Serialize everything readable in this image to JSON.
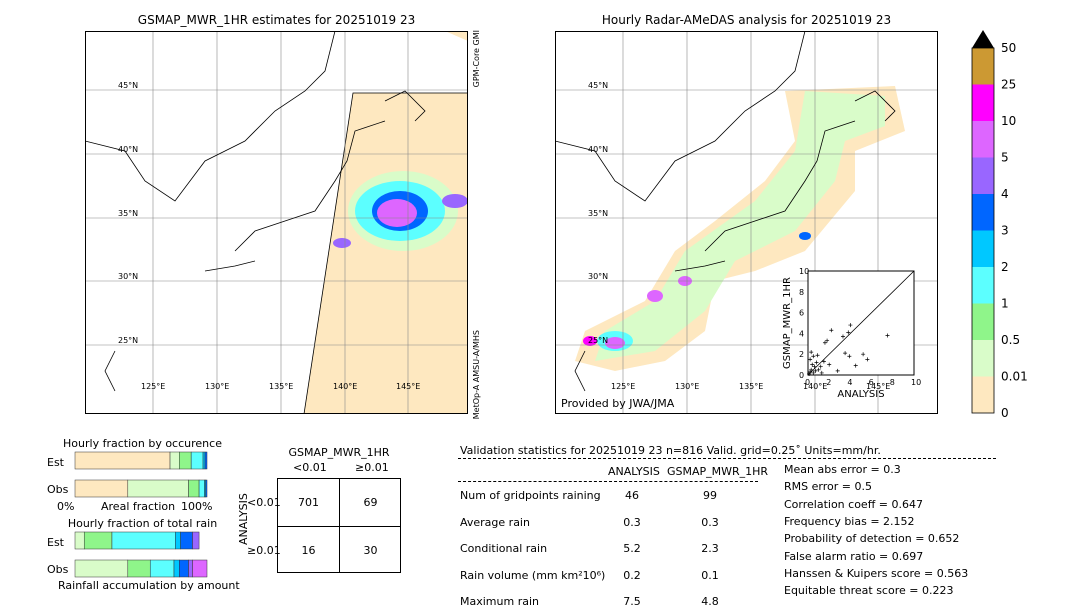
{
  "left_map": {
    "title": "GSMAP_MWR_1HR estimates for 20251019 23",
    "sensor_top": "GPM-Core GMI",
    "sensor_bottom": "MetOp-A AMSU-A/MHS"
  },
  "right_map": {
    "title": "Hourly Radar-AMeDAS analysis for 20251019 23",
    "credit": "Provided by JWA/JMA"
  },
  "lat_labels": [
    "45°N",
    "40°N",
    "35°N",
    "30°N",
    "25°N"
  ],
  "lon_labels": [
    "125°E",
    "130°E",
    "135°E",
    "140°E",
    "145°E"
  ],
  "colorbar": {
    "ticks": [
      "0",
      "0.01",
      "0.5",
      "1",
      "2",
      "3",
      "4",
      "5",
      "10",
      "25",
      "50"
    ],
    "colors": [
      "#fee8c0",
      "#d9fcc9",
      "#8ff58a",
      "#5cffff",
      "#00c8ff",
      "#0066ff",
      "#9966ff",
      "#dd66ff",
      "#ff00ff",
      "#cc9933"
    ],
    "extend_color": "#000000"
  },
  "chart_data": [
    {
      "type": "scatter",
      "xlabel": "ANALYSIS",
      "ylabel": "GSMAP_MWR_1HR",
      "xlim": [
        0,
        10
      ],
      "ylim": [
        0,
        10
      ],
      "ticks": [
        "0",
        "2",
        "4",
        "6",
        "8",
        "10"
      ],
      "points": [
        [
          0.2,
          0.3
        ],
        [
          0.3,
          0.5
        ],
        [
          0.5,
          0.2
        ],
        [
          0.4,
          1.0
        ],
        [
          0.6,
          0.8
        ],
        [
          0.8,
          1.2
        ],
        [
          1.0,
          0.5
        ],
        [
          0.2,
          1.5
        ],
        [
          0.5,
          1.8
        ],
        [
          0.9,
          1.9
        ],
        [
          1.2,
          0.8
        ],
        [
          1.5,
          1.3
        ],
        [
          1.6,
          3.1
        ],
        [
          1.8,
          3.3
        ],
        [
          2.2,
          4.3
        ],
        [
          3.3,
          3.7
        ],
        [
          3.8,
          4.1
        ],
        [
          4.0,
          4.8
        ],
        [
          3.5,
          2.1
        ],
        [
          3.9,
          1.8
        ],
        [
          5.2,
          2.0
        ],
        [
          5.6,
          1.5
        ],
        [
          4.5,
          0.9
        ],
        [
          7.5,
          3.8
        ],
        [
          2.8,
          0.4
        ],
        [
          1.3,
          0.2
        ],
        [
          0.1,
          0.1
        ],
        [
          0.3,
          2.2
        ],
        [
          0.7,
          0.4
        ],
        [
          2.0,
          1.0
        ]
      ]
    },
    {
      "type": "bar",
      "title": "Hourly fraction by occurence",
      "xlabel": "Areal fraction",
      "xticks": [
        "0%",
        "100%"
      ],
      "categories": [
        "Est",
        "Obs"
      ],
      "series": [
        [
          0.72,
          0.07,
          0.09,
          0.09,
          0.015,
          0.015
        ],
        [
          0.4,
          0.46,
          0.08,
          0.04,
          0.01,
          0.01
        ]
      ]
    },
    {
      "type": "bar",
      "title": "Hourly fraction of total rain",
      "xlabel": "Rainfall accumulation by amount",
      "categories": [
        "Est",
        "Obs"
      ],
      "series": [
        [
          0,
          0.07,
          0.21,
          0.48,
          0.04,
          0.09,
          0.05,
          0
        ],
        [
          0,
          0.4,
          0.17,
          0.18,
          0.04,
          0.07,
          0.03,
          0.11
        ]
      ]
    },
    {
      "type": "table",
      "title": "GSMAP_MWR_1HR",
      "col_headers": [
        "<0.01",
        "≥0.01"
      ],
      "row_label": "ANALYSIS",
      "row_headers": [
        "<0.01",
        "≥0.01"
      ],
      "cells": [
        [
          "701",
          "69"
        ],
        [
          "16",
          "30"
        ]
      ]
    }
  ],
  "stats": {
    "header": "Validation statistics for 20251019 23  n=816 Valid. grid=0.25˚ Units=mm/hr.",
    "col_headers": [
      "ANALYSIS",
      "GSMAP_MWR_1HR"
    ],
    "rows": [
      {
        "label": "Num of gridpoints raining",
        "a": "46",
        "g": "99"
      },
      {
        "label": "Average rain",
        "a": "0.3",
        "g": "0.3"
      },
      {
        "label": "Conditional rain",
        "a": "5.2",
        "g": "2.3"
      },
      {
        "label": "Rain volume (mm km²10⁶)",
        "a": "0.2",
        "g": "0.1"
      },
      {
        "label": "Maximum rain",
        "a": "7.5",
        "g": "4.8"
      }
    ],
    "scores": [
      "Mean abs error =    0.3",
      "RMS error =    0.5",
      "Correlation coeff =  0.647",
      "Frequency bias =  2.152",
      "Probability of detection =  0.652",
      "False alarm ratio =  0.697",
      "Hanssen & Kuipers score =  0.563",
      "Equitable threat score =  0.223"
    ]
  }
}
